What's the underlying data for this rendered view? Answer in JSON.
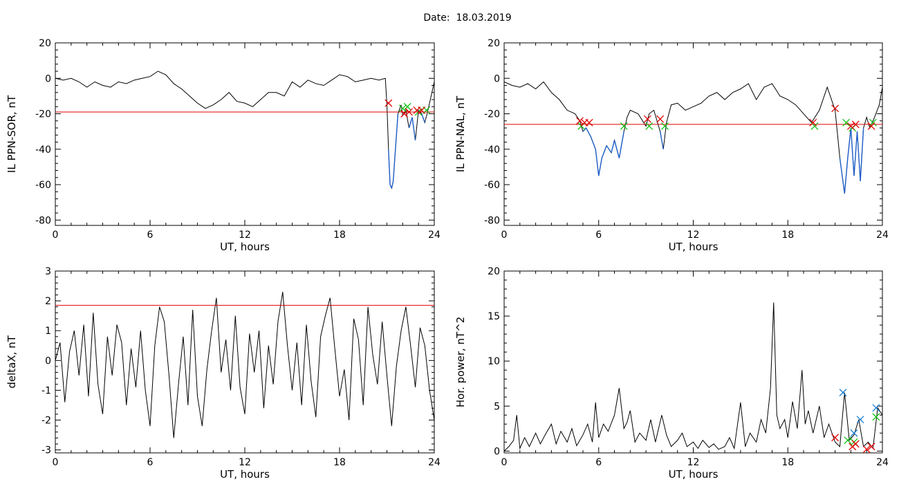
{
  "date_label": "Date:  18.03.2019",
  "colors": {
    "trace": "#000000",
    "threshold": "#e00000",
    "sub_threshold_segment": "#1f5fc8",
    "marker_red": "#e00000",
    "marker_green": "#10c010",
    "marker_blue": "#1a7fd0"
  },
  "chart_data": [
    {
      "type": "line",
      "title": "",
      "xlabel": "UT, hours",
      "ylabel": "IL PPN-SOR, nT",
      "xlim": [
        0,
        24
      ],
      "ylim": [
        -83,
        20
      ],
      "xticks": [
        0,
        6,
        12,
        18,
        24
      ],
      "yticks": [
        20,
        0,
        -20,
        -40,
        -60,
        -80
      ],
      "threshold": -19,
      "series": [
        {
          "x": [
            0,
            0.5,
            1,
            1.5,
            2,
            2.5,
            3,
            3.5,
            4,
            4.5,
            5,
            5.5,
            6,
            6.5,
            7,
            7.5,
            8,
            8.5,
            9,
            9.5,
            10,
            10.5,
            11,
            11.5,
            12,
            12.5,
            13,
            13.5,
            14,
            14.5,
            15,
            15.5,
            16,
            16.5,
            17,
            17.5,
            18,
            18.5,
            19,
            19.5,
            20,
            20.5,
            20.9,
            21.0,
            21.1,
            21.2,
            21.3,
            21.4,
            21.5,
            21.7,
            21.9,
            22.0,
            22.2,
            22.4,
            22.6,
            22.8,
            23.0,
            23.2,
            23.4,
            23.6,
            23.8,
            24
          ],
          "values": [
            0,
            -1,
            0,
            -2,
            -5,
            -2,
            -4,
            -5,
            -2,
            -3,
            -1,
            0,
            1,
            4,
            2,
            -3,
            -6,
            -10,
            -14,
            -17,
            -15,
            -12,
            -8,
            -13,
            -14,
            -16,
            -12,
            -8,
            -8,
            -10,
            -2,
            -5,
            -1,
            -3,
            -4,
            -1,
            2,
            1,
            -2,
            -1,
            0,
            -1,
            0,
            -15,
            -40,
            -60,
            -62,
            -58,
            -45,
            -20,
            -15,
            -21,
            -18,
            -28,
            -22,
            -35,
            -18,
            -20,
            -25,
            -18,
            -10,
            -2
          ]
        }
      ],
      "markers_red": [
        [
          21.1,
          -14
        ],
        [
          22.1,
          -20
        ],
        [
          22.4,
          -19
        ],
        [
          22.9,
          -18
        ],
        [
          23.2,
          -18
        ]
      ],
      "markers_green": [
        [
          22.0,
          -17
        ],
        [
          22.3,
          -16
        ],
        [
          23.0,
          -19
        ],
        [
          23.5,
          -18
        ]
      ]
    },
    {
      "type": "line",
      "title": "",
      "xlabel": "UT, hours",
      "ylabel": "IL PPN-NAL, nT",
      "xlim": [
        0,
        24
      ],
      "ylim": [
        -83,
        20
      ],
      "xticks": [
        0,
        6,
        12,
        18,
        24
      ],
      "yticks": [
        20,
        0,
        -20,
        -40,
        -60,
        -80
      ],
      "threshold": -26,
      "series": [
        {
          "x": [
            0,
            0.5,
            1,
            1.5,
            2,
            2.5,
            3,
            3.5,
            4,
            4.5,
            4.8,
            5.0,
            5.2,
            5.5,
            5.8,
            6.0,
            6.2,
            6.5,
            6.8,
            7.0,
            7.3,
            7.6,
            7.8,
            8,
            8.5,
            9,
            9.2,
            9.5,
            9.9,
            10.1,
            10.3,
            10.6,
            11,
            11.5,
            12,
            12.5,
            13,
            13.5,
            14,
            14.5,
            15,
            15.5,
            16,
            16.5,
            17,
            17.5,
            18,
            18.5,
            19,
            19.5,
            20,
            20.5,
            21.0,
            21.3,
            21.6,
            21.8,
            22.0,
            22.2,
            22.4,
            22.6,
            22.8,
            23.0,
            23.2,
            23.5,
            23.8,
            24
          ],
          "values": [
            -2,
            -4,
            -5,
            -3,
            -6,
            -2,
            -8,
            -12,
            -18,
            -20,
            -24,
            -30,
            -28,
            -33,
            -40,
            -55,
            -45,
            -38,
            -42,
            -35,
            -45,
            -30,
            -22,
            -18,
            -20,
            -27,
            -20,
            -18,
            -30,
            -40,
            -25,
            -15,
            -14,
            -18,
            -16,
            -14,
            -10,
            -8,
            -12,
            -8,
            -6,
            -3,
            -12,
            -5,
            -3,
            -10,
            -12,
            -15,
            -20,
            -25,
            -18,
            -5,
            -18,
            -45,
            -65,
            -45,
            -28,
            -55,
            -30,
            -58,
            -28,
            -22,
            -28,
            -22,
            -15,
            -5
          ]
        }
      ],
      "markers_red": [
        [
          4.8,
          -24
        ],
        [
          5.1,
          -25
        ],
        [
          5.4,
          -25
        ],
        [
          9.1,
          -23
        ],
        [
          9.9,
          -23
        ],
        [
          19.6,
          -25
        ],
        [
          21.0,
          -17
        ],
        [
          22.0,
          -27
        ],
        [
          22.3,
          -26
        ],
        [
          23.3,
          -27
        ]
      ],
      "markers_green": [
        [
          4.9,
          -27
        ],
        [
          7.6,
          -27
        ],
        [
          9.2,
          -27
        ],
        [
          10.2,
          -27
        ],
        [
          19.7,
          -27
        ],
        [
          21.7,
          -25
        ],
        [
          22.1,
          -28
        ],
        [
          23.4,
          -25
        ]
      ]
    },
    {
      "type": "line",
      "title": "",
      "xlabel": "UT, hours",
      "ylabel": "deltaX, nT",
      "xlim": [
        0,
        24
      ],
      "ylim": [
        -3.1,
        3.0
      ],
      "xticks": [
        0,
        6,
        12,
        18,
        24
      ],
      "yticks": [
        3,
        2,
        1,
        0,
        -1,
        -2,
        -3
      ],
      "threshold": 1.85,
      "series": [
        {
          "x": [
            0,
            0.3,
            0.6,
            0.9,
            1.2,
            1.5,
            1.8,
            2.1,
            2.4,
            2.7,
            3.0,
            3.3,
            3.6,
            3.9,
            4.2,
            4.5,
            4.8,
            5.1,
            5.4,
            5.7,
            6.0,
            6.3,
            6.6,
            6.9,
            7.2,
            7.5,
            7.8,
            8.1,
            8.4,
            8.7,
            9.0,
            9.3,
            9.6,
            9.9,
            10.2,
            10.5,
            10.8,
            11.1,
            11.4,
            11.7,
            12.0,
            12.3,
            12.6,
            12.9,
            13.2,
            13.5,
            13.8,
            14.1,
            14.4,
            14.7,
            15.0,
            15.3,
            15.6,
            15.9,
            16.2,
            16.5,
            16.8,
            17.1,
            17.4,
            17.7,
            18.0,
            18.3,
            18.6,
            18.9,
            19.2,
            19.5,
            19.8,
            20.1,
            20.4,
            20.7,
            21.0,
            21.3,
            21.6,
            21.9,
            22.2,
            22.5,
            22.8,
            23.1,
            23.4,
            23.7,
            24
          ],
          "values": [
            0,
            0.6,
            -1.4,
            0.3,
            1.0,
            -0.5,
            1.2,
            -1.2,
            1.6,
            -0.8,
            -1.8,
            0.8,
            -0.5,
            1.2,
            0.6,
            -1.5,
            0.4,
            -0.9,
            1.0,
            -1.0,
            -2.2,
            0.5,
            1.8,
            1.3,
            -0.5,
            -2.6,
            -0.8,
            0.8,
            -1.5,
            1.7,
            -1.2,
            -2.2,
            -0.3,
            1.0,
            2.1,
            -0.4,
            0.7,
            -1.0,
            1.5,
            -0.9,
            -1.8,
            0.9,
            -0.4,
            1.0,
            -1.6,
            0.5,
            -0.8,
            1.3,
            2.3,
            0.5,
            -1.0,
            0.6,
            -1.5,
            1.2,
            -0.7,
            -1.9,
            0.8,
            1.5,
            2.1,
            0.4,
            -1.2,
            -0.3,
            -2.0,
            1.4,
            0.7,
            -1.5,
            1.8,
            0.2,
            -0.8,
            1.3,
            -0.5,
            -2.2,
            -0.2,
            1.0,
            1.8,
            0.5,
            -0.9,
            1.1,
            0.5,
            -1.0,
            -2.0
          ]
        }
      ]
    },
    {
      "type": "line",
      "title": "",
      "xlabel": "UT, hours",
      "ylabel": "Hor. power, nT^2",
      "xlim": [
        0,
        24
      ],
      "ylim": [
        -0.2,
        20
      ],
      "xticks": [
        0,
        6,
        12,
        18,
        24
      ],
      "yticks": [
        20,
        15,
        10,
        5,
        0
      ],
      "series": [
        {
          "x": [
            0,
            0.3,
            0.6,
            0.8,
            1.0,
            1.3,
            1.6,
            2.0,
            2.3,
            2.6,
            3.0,
            3.3,
            3.6,
            4.0,
            4.3,
            4.6,
            5.0,
            5.3,
            5.6,
            5.8,
            6.0,
            6.3,
            6.6,
            7.0,
            7.3,
            7.6,
            7.8,
            8.0,
            8.3,
            8.6,
            9.0,
            9.3,
            9.6,
            10.0,
            10.3,
            10.6,
            11.0,
            11.3,
            11.6,
            12.0,
            12.3,
            12.6,
            13.0,
            13.3,
            13.6,
            14.0,
            14.3,
            14.6,
            15.0,
            15.3,
            15.6,
            16.0,
            16.3,
            16.6,
            16.9,
            17.1,
            17.3,
            17.5,
            17.8,
            18.0,
            18.3,
            18.6,
            18.9,
            19.1,
            19.3,
            19.6,
            20.0,
            20.3,
            20.6,
            21.0,
            21.3,
            21.6,
            21.9,
            22.2,
            22.5,
            22.8,
            23.1,
            23.4,
            23.7,
            24
          ],
          "values": [
            0,
            0.5,
            1.2,
            4.0,
            0.3,
            1.5,
            0.5,
            2.0,
            0.8,
            1.8,
            3.0,
            0.8,
            2.2,
            1.0,
            2.5,
            0.6,
            1.8,
            3.0,
            1.0,
            5.4,
            1.5,
            3.0,
            2.2,
            4.0,
            7.0,
            2.5,
            3.2,
            4.5,
            1.0,
            2.0,
            1.2,
            3.5,
            1.0,
            4.0,
            1.8,
            0.5,
            1.2,
            2.0,
            0.5,
            1.0,
            0.3,
            1.2,
            0.4,
            0.8,
            0.2,
            0.5,
            1.5,
            0.3,
            5.4,
            0.5,
            2.0,
            1.0,
            3.5,
            2.0,
            7.0,
            16.5,
            4.0,
            2.5,
            3.5,
            1.5,
            5.5,
            2.5,
            9.0,
            3.0,
            4.5,
            2.0,
            5.0,
            1.5,
            3.0,
            1.0,
            0.5,
            6.5,
            1.2,
            1.8,
            3.5,
            0.5,
            1.0,
            0.3,
            4.8,
            4.0
          ]
        }
      ],
      "markers_red": [
        [
          21.0,
          1.5
        ],
        [
          22.1,
          0.5
        ],
        [
          22.3,
          0.8
        ],
        [
          23.0,
          0.2
        ],
        [
          23.3,
          0.5
        ]
      ],
      "markers_green": [
        [
          21.8,
          1.2
        ],
        [
          22.2,
          1.0
        ],
        [
          23.6,
          3.8
        ]
      ],
      "markers_blue": [
        [
          21.5,
          6.5
        ],
        [
          22.2,
          2.0
        ],
        [
          22.6,
          3.5
        ],
        [
          23.6,
          4.8
        ]
      ]
    }
  ]
}
